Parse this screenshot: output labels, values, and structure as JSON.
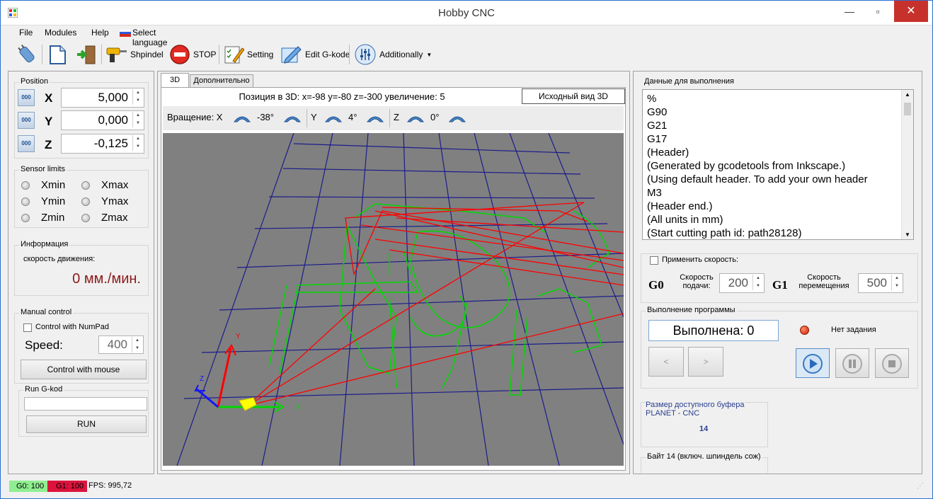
{
  "window": {
    "title": "Hobby CNC",
    "minimize": "—",
    "maximize": "▫",
    "close": "✕"
  },
  "menu": {
    "file": "File",
    "modules": "Modules",
    "help": "Help",
    "language": "Select language"
  },
  "toolbar": {
    "spindle": "Shpindel",
    "stop": "STOP",
    "setting": "Setting",
    "edit": "Edit G-kode",
    "additionally": "Additionally"
  },
  "position": {
    "title": "Position",
    "axis_btn": "000",
    "x": {
      "label": "X",
      "value": "5,000"
    },
    "y": {
      "label": "Y",
      "value": "0,000"
    },
    "z": {
      "label": "Z",
      "value": "-0,125"
    }
  },
  "sensor": {
    "title": "Sensor limits",
    "xmin": "Xmin",
    "xmax": "Xmax",
    "ymin": "Ymin",
    "ymax": "Ymax",
    "zmin": "Zmin",
    "zmax": "Zmax"
  },
  "info": {
    "title": "Информация",
    "speed_label": "скорость движения:",
    "speed_value": "0 мм./мин."
  },
  "manual": {
    "title": "Manual control",
    "numpad": "Control with NumPad",
    "speed_label": "Speed:",
    "speed_value": "400",
    "mouse_btn": "Control with mouse"
  },
  "rungkod": {
    "title": "Run G-kod",
    "input": "",
    "run_btn": "RUN"
  },
  "tabs": {
    "tab3d": "3D",
    "tab_extra": "Дополнительно"
  },
  "view3d": {
    "position_text": "Позиция в 3D: x=-98 y=-80 z=-300 увеличение: 5",
    "reset_btn": "Исходный вид 3D",
    "rotation_label": "Вращение: X",
    "rx": "-38°",
    "y_label": "Y",
    "ry": "4°",
    "z_label": "Z",
    "rz": "0°",
    "axis_x": "X",
    "axis_y": "Y",
    "axis_z": "Z"
  },
  "exec": {
    "title": "Данные для выполнения",
    "gcode": [
      "%",
      "G90",
      "G21",
      "G17",
      "(Header)",
      "(Generated by gcodetools from Inkscape.)",
      "(Using default header. To add your own header",
      "M3",
      "(Header end.)",
      "(All units in mm)",
      "(Start cutting path id: path28128)"
    ]
  },
  "speed": {
    "apply": "Применить скорость:",
    "g0": "G0",
    "g0_label1": "Скорость",
    "g0_label2": "подачи:",
    "g0_value": "200",
    "g1": "G1",
    "g1_label1": "Скорость",
    "g1_label2": "перемещения",
    "g1_value": "500"
  },
  "program": {
    "title": "Выполнение программы",
    "done": "Выполнена: 0",
    "task": "Нет задания",
    "prev": "<",
    "next": ">"
  },
  "buffer": {
    "title": "Размер доступного буфера",
    "device": "PLANET - CNC",
    "value": "14"
  },
  "byte": {
    "title": "Байт 14 (включ. шпиндель сож)"
  },
  "status": {
    "g0": "G0: 100",
    "g1": "G1: 100",
    "fps": "FPS: 995,72"
  },
  "colors": {
    "g0": "#90ee90",
    "g1": "#dc143c",
    "grid": "#1c1c8c",
    "toolpath": "#00d800",
    "rapid": "#ff0000",
    "viewport": "#808080"
  }
}
